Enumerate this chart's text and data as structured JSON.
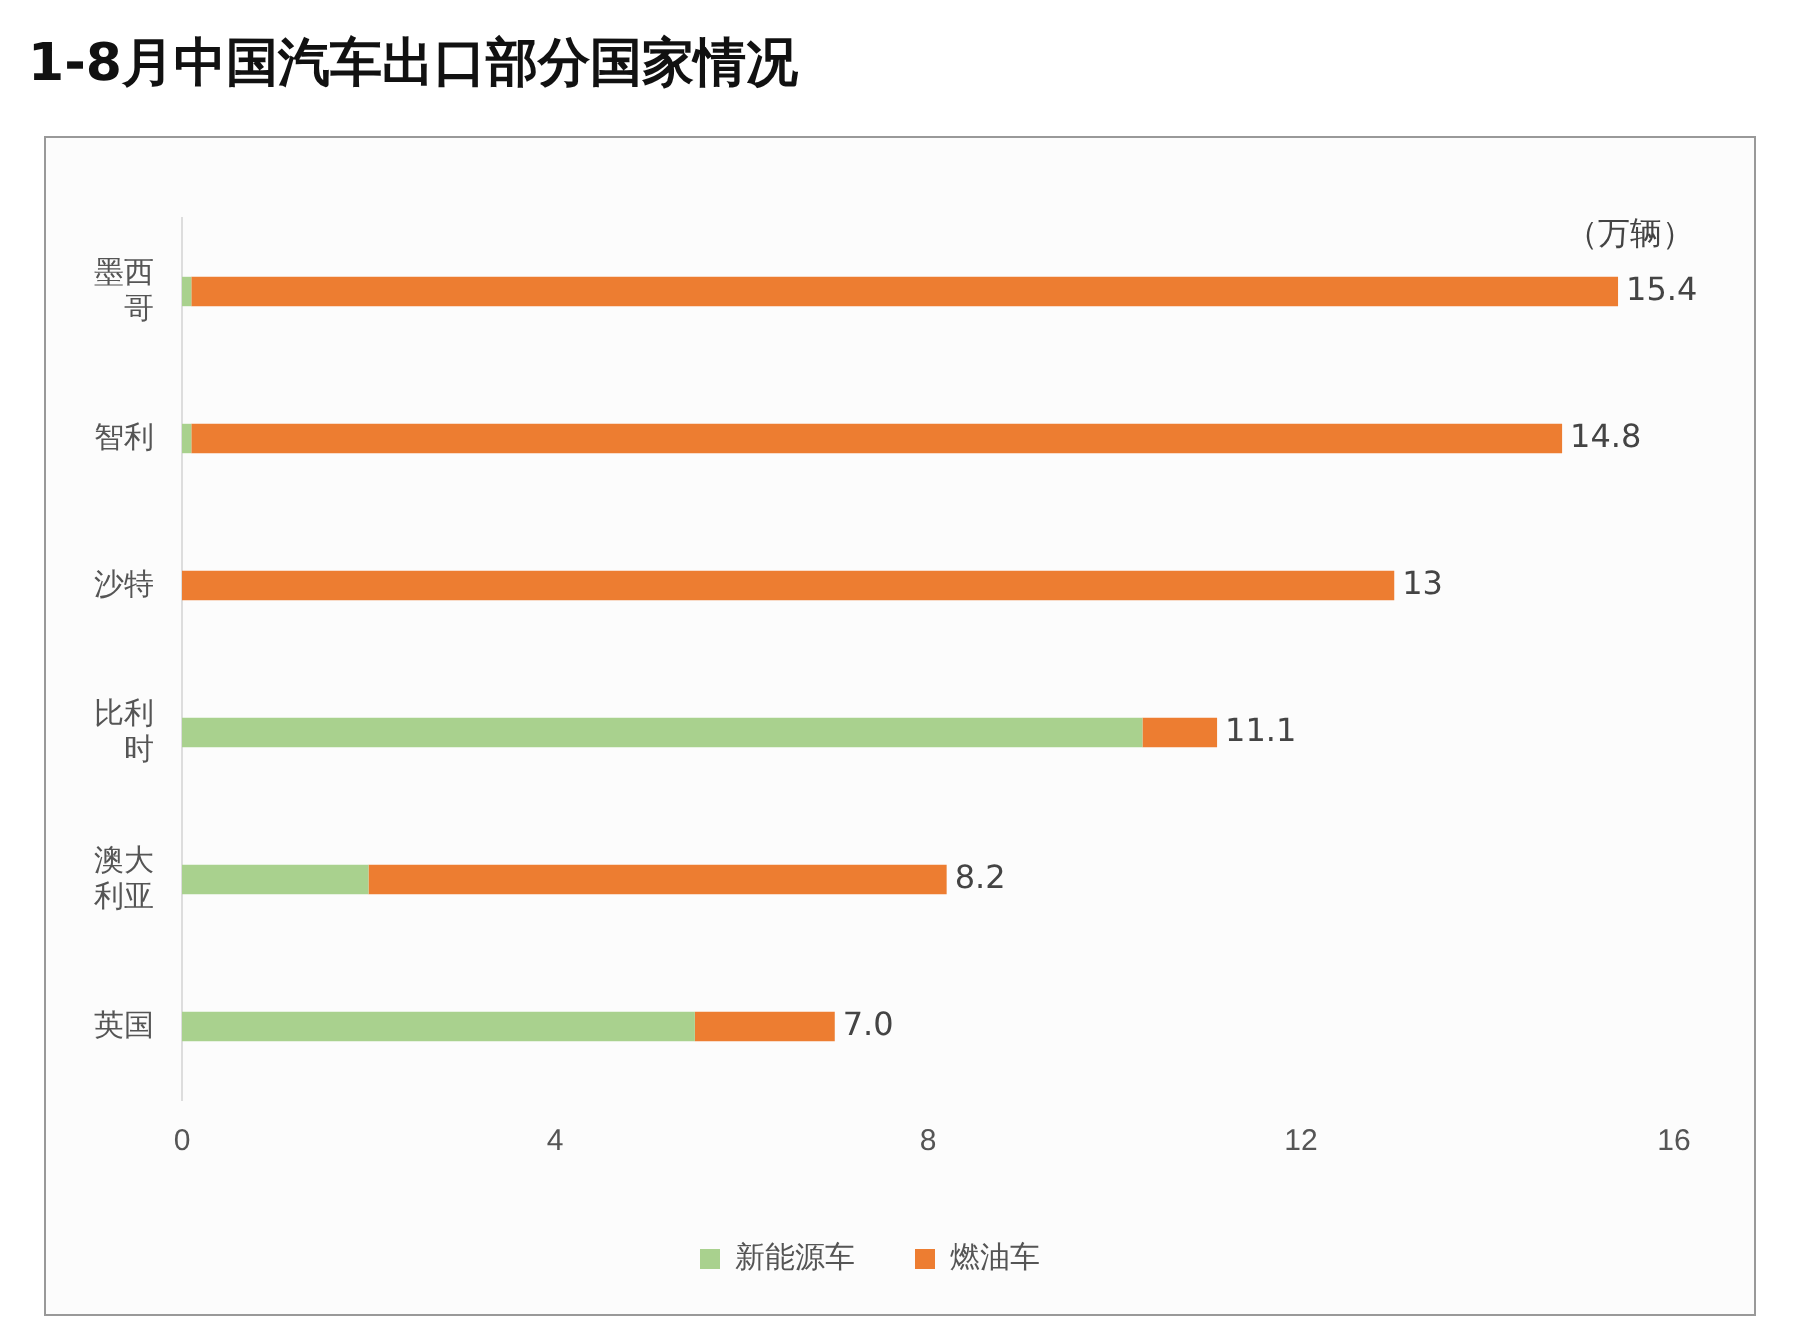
{
  "chart_data": {
    "type": "bar",
    "orientation": "horizontal",
    "stacked": true,
    "title": "1-8月中国汽车出口部分国家情况",
    "categories": [
      "墨西哥",
      "智利",
      "沙特",
      "比利时",
      "澳大利亚",
      "英国"
    ],
    "series": [
      {
        "name": "新能源车",
        "color": "#a9d18e",
        "values": [
          0.1,
          0.1,
          0,
          10.3,
          2.0,
          5.5
        ]
      },
      {
        "name": "燃油车",
        "color": "#ed7d31",
        "values": [
          15.3,
          14.7,
          13,
          0.8,
          6.2,
          1.5
        ]
      }
    ],
    "totals": [
      "15.4",
      "14.8",
      "13",
      "11.1",
      "8.2",
      "7.0"
    ],
    "xlim": [
      0,
      16
    ],
    "xticks": [
      0,
      4,
      8,
      12,
      16
    ],
    "annotations": [
      "（万辆）"
    ],
    "grid": false,
    "legend": "bottom"
  }
}
